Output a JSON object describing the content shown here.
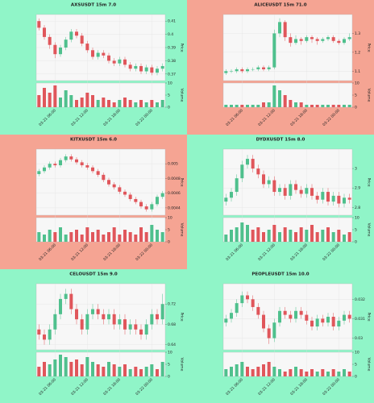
{
  "colors": {
    "up": "#4fc08d",
    "down": "#e0565b"
  },
  "chart_data": [
    {
      "type": "candlestick",
      "title": "AXSUSDT 15m 7.0",
      "background": "#90f5c8",
      "ylabel": "Price",
      "vlabel": "Volume",
      "candles": [
        [
          0.41,
          0.412,
          0.403,
          0.405
        ],
        [
          0.405,
          0.407,
          0.396,
          0.398
        ],
        [
          0.398,
          0.4,
          0.389,
          0.392
        ],
        [
          0.392,
          0.394,
          0.382,
          0.385
        ],
        [
          0.385,
          0.392,
          0.383,
          0.39
        ],
        [
          0.39,
          0.398,
          0.388,
          0.396
        ],
        [
          0.396,
          0.404,
          0.394,
          0.402
        ],
        [
          0.402,
          0.404,
          0.397,
          0.399
        ],
        [
          0.399,
          0.401,
          0.391,
          0.393
        ],
        [
          0.393,
          0.395,
          0.386,
          0.388
        ],
        [
          0.388,
          0.39,
          0.381,
          0.383
        ],
        [
          0.383,
          0.388,
          0.381,
          0.386
        ],
        [
          0.386,
          0.388,
          0.382,
          0.384
        ],
        [
          0.384,
          0.386,
          0.378,
          0.38
        ],
        [
          0.38,
          0.382,
          0.376,
          0.378
        ],
        [
          0.378,
          0.383,
          0.376,
          0.381
        ],
        [
          0.381,
          0.383,
          0.375,
          0.377
        ],
        [
          0.377,
          0.379,
          0.372,
          0.374
        ],
        [
          0.374,
          0.378,
          0.372,
          0.376
        ],
        [
          0.376,
          0.378,
          0.37,
          0.372
        ],
        [
          0.372,
          0.377,
          0.37,
          0.375
        ],
        [
          0.375,
          0.377,
          0.369,
          0.371
        ],
        [
          0.371,
          0.376,
          0.369,
          0.374
        ],
        [
          0.374,
          0.378,
          0.372,
          0.376
        ]
      ],
      "volume": [
        5,
        8,
        6,
        9,
        4,
        7,
        5,
        3,
        4,
        6,
        5,
        3,
        4,
        3,
        2,
        3,
        4,
        3,
        2,
        3,
        2,
        3,
        2,
        3
      ],
      "ylim": [
        0.365,
        0.415
      ],
      "yticks": [
        0.37,
        0.38,
        0.39,
        0.4,
        0.41
      ],
      "vlim": [
        0,
        10
      ],
      "vticks": [
        0,
        5,
        10
      ],
      "xticks": [
        {
          "value": 3,
          "label": "03-21 06:00"
        },
        {
          "value": 9,
          "label": "03-21 12:00"
        },
        {
          "value": 15,
          "label": "03-21 18:00"
        },
        {
          "value": 21,
          "label": "03-22 00:00"
        }
      ]
    },
    {
      "type": "candlestick",
      "title": "ALICEUSDT 15m 71.0",
      "background": "#f5a493",
      "ylabel": "Price",
      "vlabel": "Volume",
      "candles": [
        [
          1.09,
          1.11,
          1.08,
          1.1
        ],
        [
          1.1,
          1.11,
          1.09,
          1.1
        ],
        [
          1.1,
          1.12,
          1.09,
          1.11
        ],
        [
          1.11,
          1.12,
          1.09,
          1.1
        ],
        [
          1.1,
          1.12,
          1.09,
          1.11
        ],
        [
          1.11,
          1.12,
          1.1,
          1.11
        ],
        [
          1.11,
          1.13,
          1.1,
          1.12
        ],
        [
          1.12,
          1.13,
          1.1,
          1.11
        ],
        [
          1.11,
          1.13,
          1.1,
          1.12
        ],
        [
          1.12,
          1.32,
          1.11,
          1.3
        ],
        [
          1.3,
          1.38,
          1.28,
          1.36
        ],
        [
          1.36,
          1.37,
          1.26,
          1.28
        ],
        [
          1.28,
          1.3,
          1.23,
          1.25
        ],
        [
          1.25,
          1.29,
          1.24,
          1.27
        ],
        [
          1.27,
          1.28,
          1.24,
          1.26
        ],
        [
          1.26,
          1.29,
          1.25,
          1.28
        ],
        [
          1.28,
          1.29,
          1.25,
          1.27
        ],
        [
          1.27,
          1.28,
          1.24,
          1.26
        ],
        [
          1.26,
          1.28,
          1.25,
          1.27
        ],
        [
          1.27,
          1.29,
          1.26,
          1.28
        ],
        [
          1.28,
          1.29,
          1.25,
          1.26
        ],
        [
          1.26,
          1.27,
          1.24,
          1.25
        ],
        [
          1.25,
          1.28,
          1.24,
          1.27
        ],
        [
          1.27,
          1.3,
          1.26,
          1.28
        ]
      ],
      "volume": [
        1,
        1,
        1,
        1,
        1,
        1,
        1,
        2,
        2,
        9,
        7,
        5,
        3,
        2,
        2,
        1,
        1,
        1,
        1,
        1,
        1,
        1,
        1,
        1
      ],
      "ylim": [
        1.05,
        1.4
      ],
      "yticks": [
        1.1,
        1.2,
        1.3
      ],
      "vlim": [
        0,
        10
      ],
      "vticks": [
        0,
        5,
        10
      ],
      "xticks": [
        {
          "value": 3,
          "label": "03-21 06:00"
        },
        {
          "value": 9,
          "label": "03-21 12:00"
        },
        {
          "value": 15,
          "label": "03-21 18:00"
        },
        {
          "value": 21,
          "label": "03-22 00:00"
        }
      ]
    },
    {
      "type": "candlestick",
      "title": "KITXUSDT 15m 6.0",
      "background": "#f5a493",
      "ylabel": "Price",
      "vlabel": "Volume",
      "candles": [
        [
          0.00486,
          0.00493,
          0.00483,
          0.0049
        ],
        [
          0.0049,
          0.00498,
          0.00487,
          0.00495
        ],
        [
          0.00495,
          0.00503,
          0.00492,
          0.005
        ],
        [
          0.005,
          0.00503,
          0.00495,
          0.00498
        ],
        [
          0.00498,
          0.00508,
          0.00495,
          0.00505
        ],
        [
          0.00505,
          0.00513,
          0.00502,
          0.0051
        ],
        [
          0.0051,
          0.00513,
          0.00503,
          0.00506
        ],
        [
          0.00506,
          0.00509,
          0.00499,
          0.00502
        ],
        [
          0.00502,
          0.00505,
          0.00495,
          0.00498
        ],
        [
          0.00498,
          0.00501,
          0.00492,
          0.00495
        ],
        [
          0.00495,
          0.00498,
          0.00487,
          0.0049
        ],
        [
          0.0049,
          0.00493,
          0.00482,
          0.00485
        ],
        [
          0.00485,
          0.00488,
          0.00475,
          0.00478
        ],
        [
          0.00478,
          0.00481,
          0.00469,
          0.00472
        ],
        [
          0.00472,
          0.00475,
          0.00465,
          0.00468
        ],
        [
          0.00468,
          0.00471,
          0.00459,
          0.00462
        ],
        [
          0.00462,
          0.00465,
          0.00455,
          0.00458
        ],
        [
          0.00458,
          0.00461,
          0.00449,
          0.00452
        ],
        [
          0.00452,
          0.00455,
          0.00445,
          0.00448
        ],
        [
          0.00448,
          0.00451,
          0.00439,
          0.00442
        ],
        [
          0.00442,
          0.00445,
          0.00435,
          0.00438
        ],
        [
          0.00438,
          0.00448,
          0.00435,
          0.00445
        ],
        [
          0.00445,
          0.00458,
          0.00442,
          0.00455
        ],
        [
          0.00455,
          0.00463,
          0.00452,
          0.0046
        ]
      ],
      "volume": [
        4,
        3,
        5,
        4,
        6,
        3,
        4,
        5,
        3,
        6,
        4,
        5,
        3,
        4,
        6,
        3,
        5,
        4,
        3,
        6,
        4,
        7,
        5,
        4
      ],
      "ylim": [
        0.0043,
        0.0052
      ],
      "yticks": [
        0.0044,
        0.0046,
        0.0048,
        0.005
      ],
      "vlim": [
        0,
        10
      ],
      "vticks": [
        0,
        5,
        10
      ],
      "xticks": [
        {
          "value": 3,
          "label": "03-21 06:00"
        },
        {
          "value": 9,
          "label": "03-21 12:00"
        },
        {
          "value": 15,
          "label": "03-21 18:00"
        },
        {
          "value": 21,
          "label": "03-22 00:00"
        }
      ]
    },
    {
      "type": "candlestick",
      "title": "DYDXUSDT 15m 8.0",
      "background": "#90f5c8",
      "ylabel": "Price",
      "vlabel": "Volume",
      "candles": [
        [
          2.83,
          2.87,
          2.81,
          2.85
        ],
        [
          2.85,
          2.9,
          2.83,
          2.88
        ],
        [
          2.88,
          2.97,
          2.86,
          2.95
        ],
        [
          2.95,
          3.04,
          2.93,
          3.02
        ],
        [
          3.02,
          3.07,
          3.0,
          3.05
        ],
        [
          3.05,
          3.07,
          2.98,
          3.0
        ],
        [
          3.0,
          3.02,
          2.95,
          2.97
        ],
        [
          2.97,
          2.99,
          2.9,
          2.92
        ],
        [
          2.92,
          2.96,
          2.9,
          2.94
        ],
        [
          2.94,
          2.96,
          2.86,
          2.88
        ],
        [
          2.88,
          2.92,
          2.86,
          2.9
        ],
        [
          2.9,
          2.92,
          2.84,
          2.86
        ],
        [
          2.86,
          2.94,
          2.84,
          2.92
        ],
        [
          2.92,
          2.94,
          2.87,
          2.89
        ],
        [
          2.89,
          2.91,
          2.85,
          2.87
        ],
        [
          2.87,
          2.92,
          2.85,
          2.9
        ],
        [
          2.9,
          2.92,
          2.84,
          2.86
        ],
        [
          2.86,
          2.88,
          2.82,
          2.84
        ],
        [
          2.84,
          2.9,
          2.82,
          2.88
        ],
        [
          2.88,
          2.9,
          2.81,
          2.83
        ],
        [
          2.83,
          2.88,
          2.81,
          2.86
        ],
        [
          2.86,
          2.88,
          2.8,
          2.82
        ],
        [
          2.82,
          2.87,
          2.8,
          2.85
        ],
        [
          2.85,
          2.87,
          2.82,
          2.84
        ]
      ],
      "volume": [
        3,
        5,
        6,
        8,
        7,
        5,
        6,
        4,
        5,
        7,
        4,
        6,
        5,
        4,
        6,
        5,
        7,
        4,
        5,
        6,
        4,
        5,
        3,
        4
      ],
      "ylim": [
        2.76,
        3.1
      ],
      "yticks": [
        2.8,
        2.9,
        3
      ],
      "vlim": [
        0,
        10
      ],
      "vticks": [
        0,
        5,
        10
      ],
      "xticks": [
        {
          "value": 3,
          "label": "03-21 06:00"
        },
        {
          "value": 9,
          "label": "03-21 12:00"
        },
        {
          "value": 15,
          "label": "03-21 18:00"
        },
        {
          "value": 21,
          "label": "03-22 00:00"
        }
      ]
    },
    {
      "type": "candlestick",
      "title": "CELOUSDT 15m 9.0",
      "background": "#90f5c8",
      "ylabel": "Price",
      "vlabel": "Volume",
      "candles": [
        [
          0.67,
          0.68,
          0.65,
          0.66
        ],
        [
          0.66,
          0.67,
          0.64,
          0.65
        ],
        [
          0.65,
          0.68,
          0.64,
          0.67
        ],
        [
          0.67,
          0.71,
          0.66,
          0.7
        ],
        [
          0.7,
          0.74,
          0.69,
          0.73
        ],
        [
          0.73,
          0.75,
          0.72,
          0.74
        ],
        [
          0.74,
          0.75,
          0.7,
          0.71
        ],
        [
          0.71,
          0.72,
          0.68,
          0.69
        ],
        [
          0.69,
          0.7,
          0.66,
          0.67
        ],
        [
          0.67,
          0.71,
          0.66,
          0.7
        ],
        [
          0.7,
          0.72,
          0.69,
          0.71
        ],
        [
          0.71,
          0.72,
          0.69,
          0.7
        ],
        [
          0.7,
          0.71,
          0.68,
          0.69
        ],
        [
          0.69,
          0.71,
          0.68,
          0.7
        ],
        [
          0.7,
          0.71,
          0.67,
          0.68
        ],
        [
          0.68,
          0.7,
          0.67,
          0.69
        ],
        [
          0.69,
          0.7,
          0.66,
          0.67
        ],
        [
          0.67,
          0.69,
          0.66,
          0.68
        ],
        [
          0.68,
          0.69,
          0.66,
          0.67
        ],
        [
          0.67,
          0.68,
          0.65,
          0.66
        ],
        [
          0.66,
          0.69,
          0.65,
          0.68
        ],
        [
          0.68,
          0.71,
          0.67,
          0.7
        ],
        [
          0.7,
          0.71,
          0.68,
          0.69
        ],
        [
          0.69,
          0.74,
          0.68,
          0.72
        ]
      ],
      "volume": [
        4,
        6,
        5,
        7,
        9,
        8,
        6,
        7,
        5,
        8,
        6,
        5,
        4,
        6,
        5,
        4,
        5,
        3,
        4,
        3,
        4,
        5,
        3,
        6
      ],
      "ylim": [
        0.63,
        0.76
      ],
      "yticks": [
        0.64,
        0.68,
        0.72
      ],
      "vlim": [
        0,
        10
      ],
      "vticks": [
        0,
        5,
        10
      ],
      "xticks": [
        {
          "value": 3,
          "label": "03-21 06:00"
        },
        {
          "value": 9,
          "label": "03-21 12:00"
        },
        {
          "value": 15,
          "label": "03-21 18:00"
        },
        {
          "value": 21,
          "label": "03-22 00:00"
        }
      ]
    },
    {
      "type": "candlestick",
      "title": "PEOPLEUSDT 15m 10.0",
      "background": "#90f5c8",
      "ylabel": "Price",
      "vlabel": "Volume",
      "candles": [
        [
          0.0308,
          0.0312,
          0.0306,
          0.031
        ],
        [
          0.031,
          0.0315,
          0.0308,
          0.0313
        ],
        [
          0.0313,
          0.032,
          0.0311,
          0.0318
        ],
        [
          0.0318,
          0.0324,
          0.0316,
          0.0322
        ],
        [
          0.0322,
          0.0324,
          0.0318,
          0.032
        ],
        [
          0.032,
          0.0322,
          0.0314,
          0.0316
        ],
        [
          0.0316,
          0.0318,
          0.031,
          0.0312
        ],
        [
          0.0312,
          0.0314,
          0.0303,
          0.0305
        ],
        [
          0.0305,
          0.0307,
          0.0297,
          0.03
        ],
        [
          0.03,
          0.031,
          0.0298,
          0.0308
        ],
        [
          0.0308,
          0.0316,
          0.0306,
          0.0314
        ],
        [
          0.0314,
          0.0316,
          0.031,
          0.0312
        ],
        [
          0.0312,
          0.0314,
          0.0308,
          0.031
        ],
        [
          0.031,
          0.0316,
          0.0308,
          0.0314
        ],
        [
          0.0314,
          0.0316,
          0.031,
          0.0312
        ],
        [
          0.0312,
          0.0314,
          0.0307,
          0.0309
        ],
        [
          0.0309,
          0.0311,
          0.0304,
          0.0306
        ],
        [
          0.0306,
          0.0312,
          0.0304,
          0.031
        ],
        [
          0.031,
          0.0312,
          0.0306,
          0.0308
        ],
        [
          0.0308,
          0.0313,
          0.0306,
          0.0311
        ],
        [
          0.0311,
          0.0313,
          0.0304,
          0.0306
        ],
        [
          0.0306,
          0.0311,
          0.0304,
          0.0309
        ],
        [
          0.0309,
          0.0314,
          0.0307,
          0.0312
        ],
        [
          0.0312,
          0.0314,
          0.0308,
          0.031
        ]
      ],
      "volume": [
        3,
        4,
        5,
        6,
        4,
        3,
        4,
        5,
        6,
        4,
        3,
        2,
        3,
        4,
        3,
        2,
        3,
        2,
        3,
        2,
        3,
        2,
        3,
        2
      ],
      "ylim": [
        0.0294,
        0.0328
      ],
      "yticks": [
        0.03,
        0.031,
        0.032
      ],
      "vlim": [
        0,
        10
      ],
      "vticks": [
        0,
        5,
        10
      ],
      "xticks": [
        {
          "value": 3,
          "label": "03-21 06:00"
        },
        {
          "value": 9,
          "label": "03-21 12:00"
        },
        {
          "value": 15,
          "label": "03-21 18:00"
        },
        {
          "value": 21,
          "label": "03-22 00:00"
        }
      ]
    }
  ]
}
